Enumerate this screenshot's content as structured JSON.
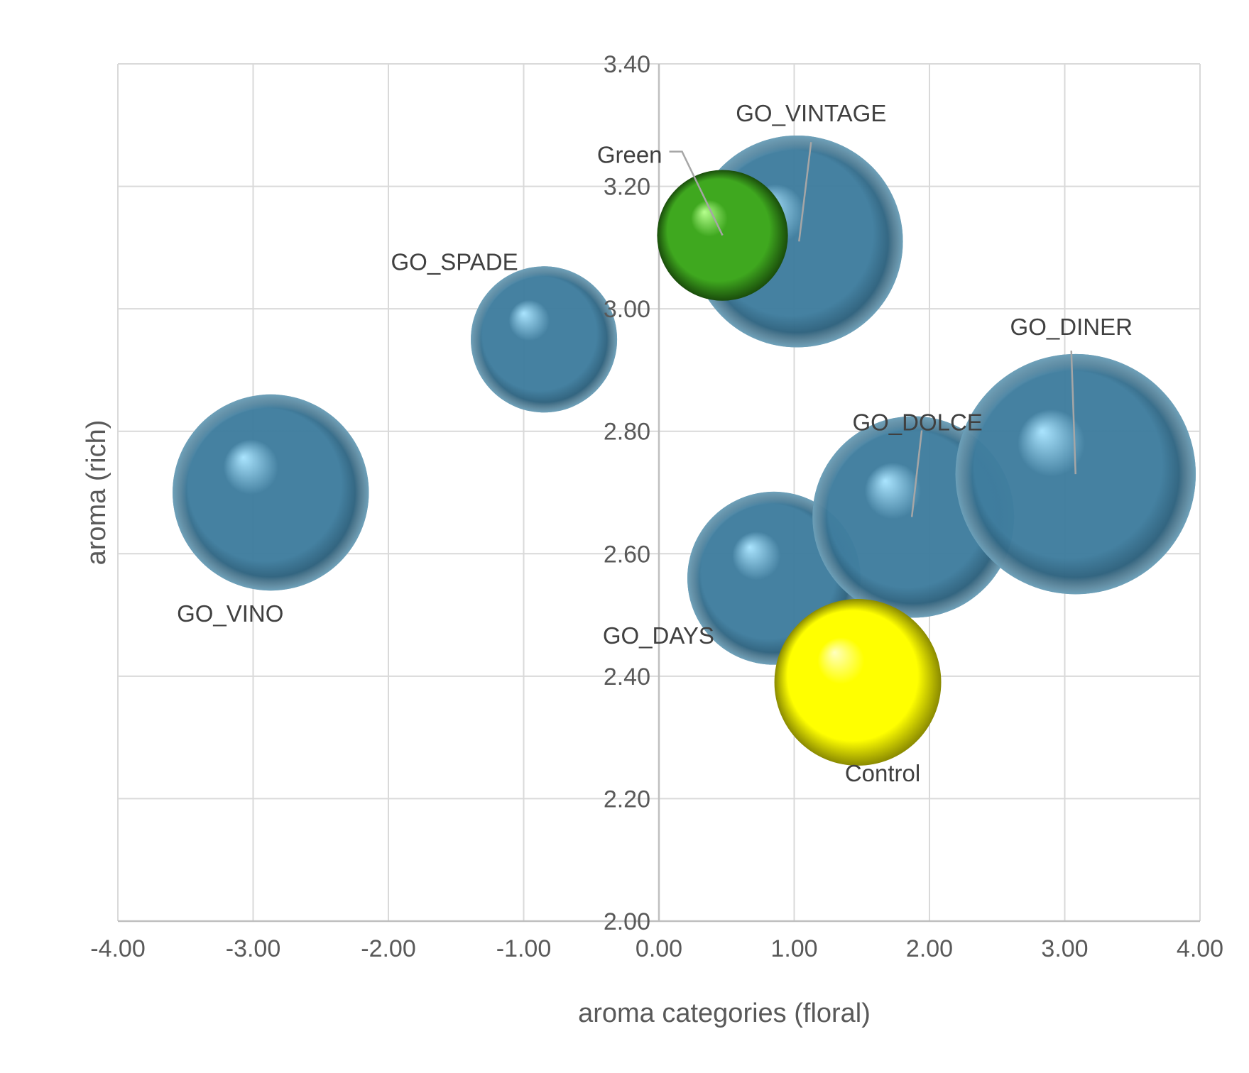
{
  "chart_data": {
    "type": "bubble",
    "xlabel": "aroma categories (floral)",
    "ylabel": "aroma  (rich)",
    "xlim": [
      -4.0,
      4.0
    ],
    "ylim": [
      2.0,
      3.4
    ],
    "x_ticks": [
      "-4.00",
      "-3.00",
      "-2.00",
      "-1.00",
      "0.00",
      "1.00",
      "2.00",
      "3.00",
      "4.00"
    ],
    "y_ticks": [
      "2.00",
      "2.20",
      "2.40",
      "2.60",
      "2.80",
      "3.00",
      "3.20",
      "3.40"
    ],
    "grid": true,
    "colors": {
      "default": "#3b7ea1",
      "Green": "#3fae1f",
      "Control": "#ffff00"
    },
    "points": [
      {
        "label": "GO_VINO",
        "x": -2.87,
        "y": 2.7,
        "size": 1.8
      },
      {
        "label": "GO_SPADE",
        "x": -0.85,
        "y": 2.95,
        "size": 1.0
      },
      {
        "label": "GO_VINTAGE",
        "x": 1.02,
        "y": 3.11,
        "size": 2.1
      },
      {
        "label": "Green",
        "x": 0.47,
        "y": 3.12,
        "size": 0.8
      },
      {
        "label": "GO_DAYS",
        "x": 0.85,
        "y": 2.56,
        "size": 1.4
      },
      {
        "label": "GO_DOLCE",
        "x": 1.88,
        "y": 2.66,
        "size": 1.9
      },
      {
        "label": "GO_DINER",
        "x": 3.08,
        "y": 2.73,
        "size": 2.7
      },
      {
        "label": "Control",
        "x": 1.47,
        "y": 2.39,
        "size": 1.3
      }
    ]
  }
}
